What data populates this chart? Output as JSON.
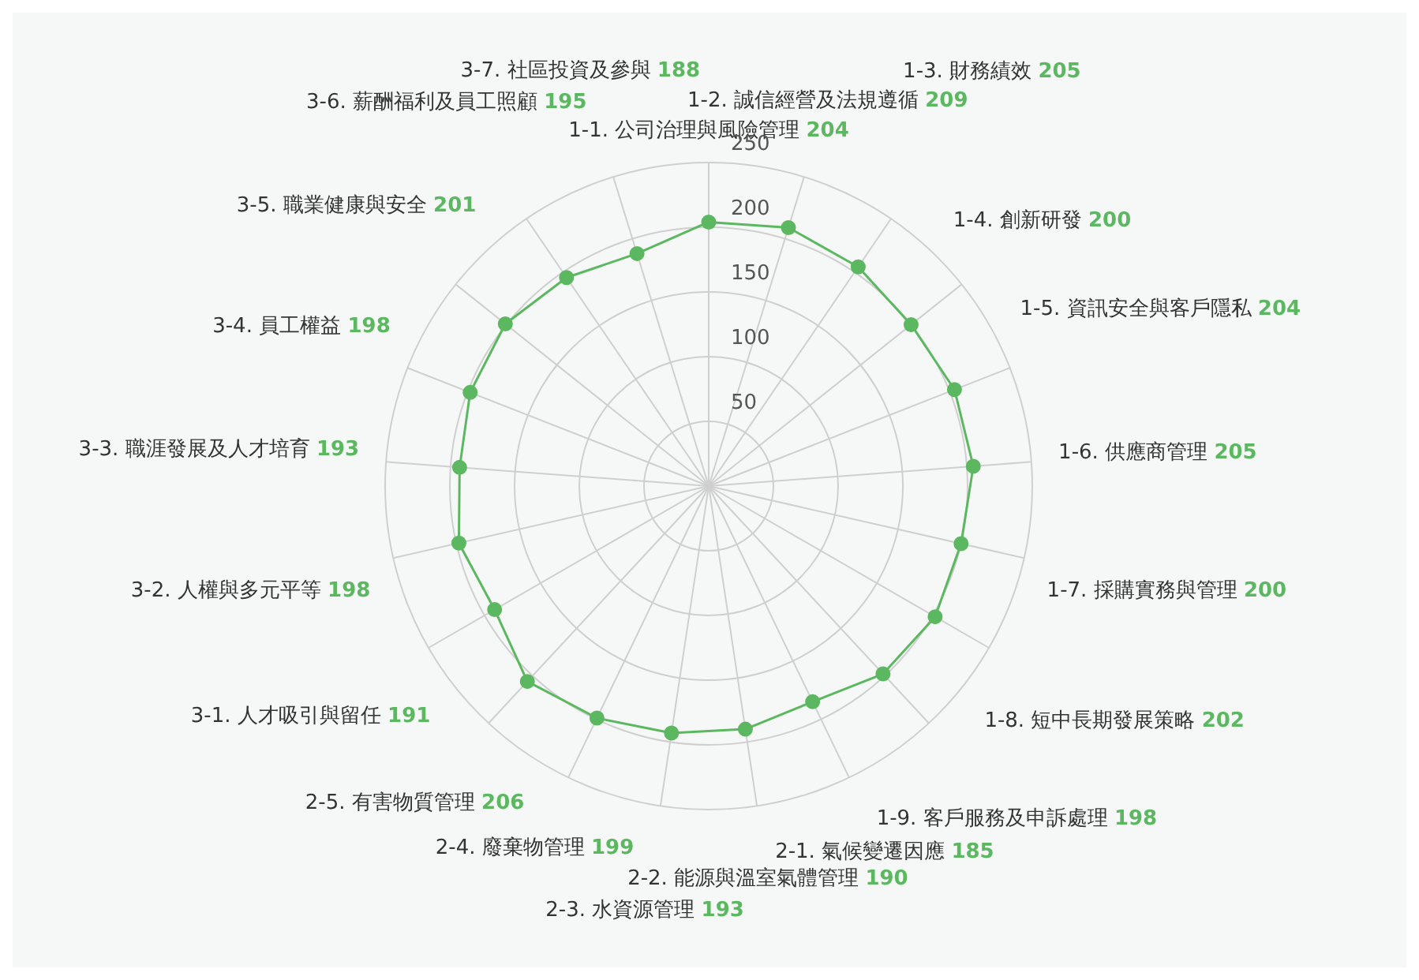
{
  "chart_data": {
    "type": "radar",
    "categories": [
      "1-1. 公司治理與風險管理 204",
      "1-2. 誠信經營及法規遵循 209",
      "1-3. 財務績效 205",
      "1-4. 創新研發 200",
      "1-5. 資訊安全與客戶隱私 204",
      "1-6. 供應商管理 205",
      "1-7. 採購實務與管理 200",
      "1-8. 短中長期發展策略 202",
      "1-9. 客戶服務及申訴處理 198",
      "2-1. 氣候變遷因應 185",
      "2-2. 能源與溫室氣體管理 190",
      "2-3. 水資源管理 193",
      "2-4. 廢棄物管理 199",
      "2-5. 有害物質管理 206",
      "3-1. 人才吸引與留任 191",
      "3-2. 人權與多元平等 198",
      "3-3. 職涯發展及人才培育 193",
      "3-4. 員工權益 198",
      "3-5. 職業健康與安全 201",
      "3-6. 薪酬福利及員工照顧 195",
      "3-7. 社區投資及參與 188"
    ],
    "series": [
      {
        "color": "#5cb860",
        "values": [
          204,
          209,
          205,
          200,
          204,
          205,
          200,
          202,
          198,
          185,
          190,
          193,
          199,
          206,
          191,
          198,
          193,
          198,
          201,
          195,
          188
        ]
      }
    ],
    "ylim": [
      0,
      250
    ],
    "yticks": [
      50,
      100,
      150,
      200,
      250
    ],
    "grid": true,
    "marker": "circle"
  }
}
